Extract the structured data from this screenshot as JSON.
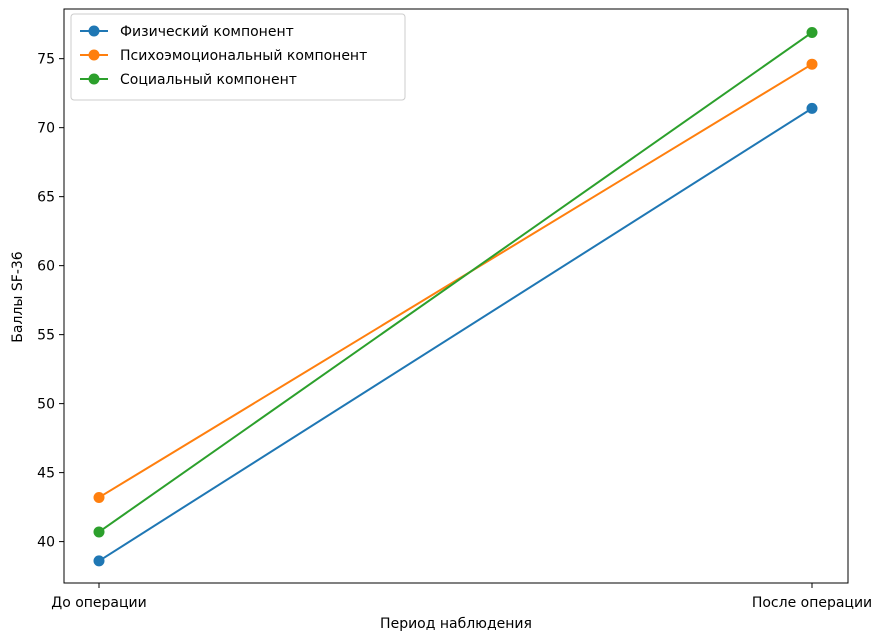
{
  "chart_data": {
    "type": "line",
    "categories": [
      "До операции",
      "После операции"
    ],
    "series": [
      {
        "name": "Физический компонент",
        "color": "#1f77b4",
        "values": [
          38.6,
          71.4
        ]
      },
      {
        "name": "Психоэмоциональный компонент",
        "color": "#ff7f0e",
        "values": [
          43.2,
          74.6
        ]
      },
      {
        "name": "Социальный компонент",
        "color": "#2ca02c",
        "values": [
          40.7,
          76.9
        ]
      }
    ],
    "xlabel": "Период наблюдения",
    "ylabel": "Баллы SF-36",
    "ylim": [
      37.0,
      78.6
    ],
    "yticks": [
      40,
      45,
      50,
      55,
      60,
      65,
      70,
      75
    ],
    "legend": "top-left",
    "grid": false,
    "marker": "circle"
  }
}
